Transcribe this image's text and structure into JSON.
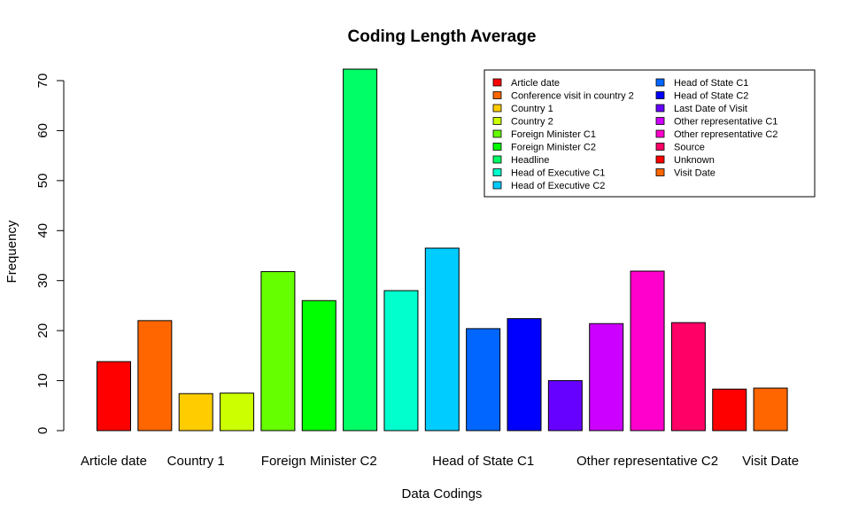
{
  "chart_data": {
    "type": "bar",
    "title": "Coding Length Average",
    "xlabel": "Data Codings",
    "ylabel": "Frequency",
    "ylim": [
      0,
      72.3
    ],
    "yticks": [
      0,
      10,
      20,
      30,
      40,
      50,
      60,
      70
    ],
    "grid": false,
    "legend_position": "top-right",
    "categories": [
      "Article date",
      "Conference visit in country 2",
      "Country 1",
      "Country 2",
      "Foreign Minister C1",
      "Foreign Minister C2",
      "Headline",
      "Head of Executive C1",
      "Head of Executive C2",
      "Head of State C1",
      "Head of State C2",
      "Last Date of Visit",
      "Other representative C1",
      "Other representative C2",
      "Source",
      "Unknown",
      "Visit Date"
    ],
    "values": [
      13.8,
      22.0,
      7.4,
      7.5,
      31.8,
      26.0,
      72.3,
      28.0,
      36.5,
      20.4,
      22.4,
      10.0,
      21.4,
      31.9,
      21.6,
      8.3,
      8.5
    ],
    "colors": [
      "#FF0000",
      "#FF6600",
      "#FFCC00",
      "#CCFF00",
      "#66FF00",
      "#00FF00",
      "#00FF66",
      "#00FFCC",
      "#00CCFF",
      "#0066FF",
      "#0000FF",
      "#6600FF",
      "#CC00FF",
      "#FF00CC",
      "#FF0066",
      "#FF0000",
      "#FF6600"
    ],
    "shown_x_labels": [
      "Article date",
      "Country 1",
      "Foreign Minister C2",
      "Head of State C1",
      "Other representative C2",
      "Visit Date"
    ]
  }
}
